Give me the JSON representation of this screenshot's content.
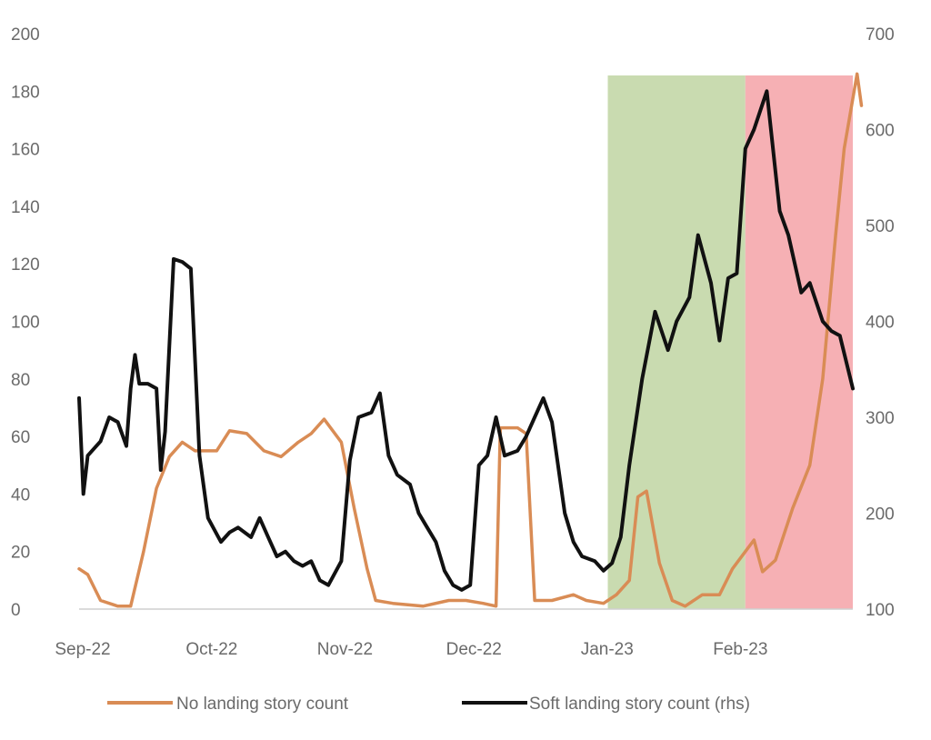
{
  "chart_data": {
    "type": "line",
    "title": "",
    "x_tick_labels": [
      "Sep-22",
      "Oct-22",
      "Nov-22",
      "Dec-22",
      "Jan-23",
      "Feb-23"
    ],
    "x_range": [
      "2022-09-01",
      "2023-02-28"
    ],
    "y_left": {
      "range": [
        0,
        200
      ],
      "ticks": [
        0,
        20,
        40,
        60,
        80,
        100,
        120,
        140,
        160,
        180,
        200
      ]
    },
    "y_right": {
      "range": [
        100,
        700
      ],
      "ticks": [
        100,
        200,
        300,
        400,
        500,
        600,
        700
      ]
    },
    "grid": false,
    "legend_position": "bottom",
    "shaded_regions": [
      {
        "from": "2023-01-02",
        "to": "2023-02-03",
        "color": "#c9dbb0"
      },
      {
        "from": "2023-02-03",
        "to": "2023-03-07",
        "color": "#f6b0b4"
      }
    ],
    "series": [
      {
        "name": "No landing story count",
        "axis": "left",
        "color": "#d98c55",
        "points": [
          [
            "2022-09-01",
            14
          ],
          [
            "2022-09-03",
            12
          ],
          [
            "2022-09-06",
            3
          ],
          [
            "2022-09-10",
            1
          ],
          [
            "2022-09-13",
            1
          ],
          [
            "2022-09-16",
            20
          ],
          [
            "2022-09-19",
            42
          ],
          [
            "2022-09-22",
            53
          ],
          [
            "2022-09-25",
            58
          ],
          [
            "2022-09-28",
            55
          ],
          [
            "2022-10-03",
            55
          ],
          [
            "2022-10-06",
            62
          ],
          [
            "2022-10-10",
            61
          ],
          [
            "2022-10-14",
            55
          ],
          [
            "2022-10-18",
            53
          ],
          [
            "2022-10-22",
            58
          ],
          [
            "2022-10-25",
            61
          ],
          [
            "2022-10-28",
            66
          ],
          [
            "2022-11-01",
            58
          ],
          [
            "2022-11-04",
            35
          ],
          [
            "2022-11-07",
            14
          ],
          [
            "2022-11-09",
            3
          ],
          [
            "2022-11-13",
            2
          ],
          [
            "2022-11-20",
            1
          ],
          [
            "2022-11-26",
            3
          ],
          [
            "2022-11-30",
            3
          ],
          [
            "2022-12-04",
            2
          ],
          [
            "2022-12-07",
            1
          ],
          [
            "2022-12-08",
            63
          ],
          [
            "2022-12-12",
            63
          ],
          [
            "2022-12-14",
            61
          ],
          [
            "2022-12-16",
            3
          ],
          [
            "2022-12-20",
            3
          ],
          [
            "2022-12-25",
            5
          ],
          [
            "2022-12-28",
            3
          ],
          [
            "2023-01-01",
            2
          ],
          [
            "2023-01-04",
            5
          ],
          [
            "2023-01-07",
            10
          ],
          [
            "2023-01-09",
            39
          ],
          [
            "2023-01-11",
            41
          ],
          [
            "2023-01-14",
            16
          ],
          [
            "2023-01-17",
            3
          ],
          [
            "2023-01-20",
            1
          ],
          [
            "2023-01-24",
            5
          ],
          [
            "2023-01-28",
            5
          ],
          [
            "2023-01-31",
            14
          ],
          [
            "2023-02-03",
            20
          ],
          [
            "2023-02-05",
            24
          ],
          [
            "2023-02-07",
            13
          ],
          [
            "2023-02-10",
            17
          ],
          [
            "2023-02-14",
            35
          ],
          [
            "2023-02-18",
            50
          ],
          [
            "2023-02-21",
            80
          ],
          [
            "2023-02-24",
            130
          ],
          [
            "2023-02-26",
            160
          ],
          [
            "2023-03-01",
            186
          ],
          [
            "2023-03-02",
            175
          ]
        ]
      },
      {
        "name": "Soft landing story count (rhs)",
        "axis": "right",
        "color": "#111111",
        "points": [
          [
            "2022-09-01",
            320
          ],
          [
            "2022-09-02",
            220
          ],
          [
            "2022-09-03",
            260
          ],
          [
            "2022-09-06",
            275
          ],
          [
            "2022-09-08",
            300
          ],
          [
            "2022-09-10",
            295
          ],
          [
            "2022-09-12",
            270
          ],
          [
            "2022-09-13",
            330
          ],
          [
            "2022-09-14",
            365
          ],
          [
            "2022-09-15",
            335
          ],
          [
            "2022-09-17",
            335
          ],
          [
            "2022-09-19",
            330
          ],
          [
            "2022-09-20",
            245
          ],
          [
            "2022-09-21",
            285
          ],
          [
            "2022-09-23",
            465
          ],
          [
            "2022-09-25",
            462
          ],
          [
            "2022-09-27",
            455
          ],
          [
            "2022-09-29",
            260
          ],
          [
            "2022-10-01",
            195
          ],
          [
            "2022-10-04",
            170
          ],
          [
            "2022-10-06",
            180
          ],
          [
            "2022-10-08",
            185
          ],
          [
            "2022-10-11",
            175
          ],
          [
            "2022-10-13",
            195
          ],
          [
            "2022-10-15",
            175
          ],
          [
            "2022-10-17",
            155
          ],
          [
            "2022-10-19",
            160
          ],
          [
            "2022-10-21",
            150
          ],
          [
            "2022-10-23",
            145
          ],
          [
            "2022-10-25",
            150
          ],
          [
            "2022-10-27",
            130
          ],
          [
            "2022-10-29",
            125
          ],
          [
            "2022-11-01",
            150
          ],
          [
            "2022-11-03",
            255
          ],
          [
            "2022-11-05",
            300
          ],
          [
            "2022-11-08",
            305
          ],
          [
            "2022-11-10",
            325
          ],
          [
            "2022-11-12",
            260
          ],
          [
            "2022-11-14",
            240
          ],
          [
            "2022-11-17",
            230
          ],
          [
            "2022-11-19",
            200
          ],
          [
            "2022-11-21",
            185
          ],
          [
            "2022-11-23",
            170
          ],
          [
            "2022-11-25",
            140
          ],
          [
            "2022-11-27",
            125
          ],
          [
            "2022-11-29",
            120
          ],
          [
            "2022-12-01",
            125
          ],
          [
            "2022-12-03",
            250
          ],
          [
            "2022-12-05",
            260
          ],
          [
            "2022-12-07",
            300
          ],
          [
            "2022-12-09",
            260
          ],
          [
            "2022-12-12",
            265
          ],
          [
            "2022-12-14",
            280
          ],
          [
            "2022-12-16",
            300
          ],
          [
            "2022-12-18",
            320
          ],
          [
            "2022-12-20",
            295
          ],
          [
            "2022-12-23",
            200
          ],
          [
            "2022-12-25",
            170
          ],
          [
            "2022-12-27",
            155
          ],
          [
            "2022-12-30",
            150
          ],
          [
            "2023-01-01",
            140
          ],
          [
            "2023-01-03",
            148
          ],
          [
            "2023-01-05",
            175
          ],
          [
            "2023-01-07",
            250
          ],
          [
            "2023-01-10",
            340
          ],
          [
            "2023-01-13",
            410
          ],
          [
            "2023-01-16",
            370
          ],
          [
            "2023-01-18",
            400
          ],
          [
            "2023-01-21",
            425
          ],
          [
            "2023-01-23",
            490
          ],
          [
            "2023-01-26",
            440
          ],
          [
            "2023-01-28",
            380
          ],
          [
            "2023-01-30",
            445
          ],
          [
            "2023-02-01",
            450
          ],
          [
            "2023-02-03",
            580
          ],
          [
            "2023-02-05",
            600
          ],
          [
            "2023-02-08",
            640
          ],
          [
            "2023-02-11",
            515
          ],
          [
            "2023-02-13",
            490
          ],
          [
            "2023-02-16",
            430
          ],
          [
            "2023-02-18",
            440
          ],
          [
            "2023-02-21",
            400
          ],
          [
            "2023-02-23",
            390
          ],
          [
            "2023-02-25",
            385
          ],
          [
            "2023-02-28",
            330
          ]
        ]
      }
    ]
  }
}
